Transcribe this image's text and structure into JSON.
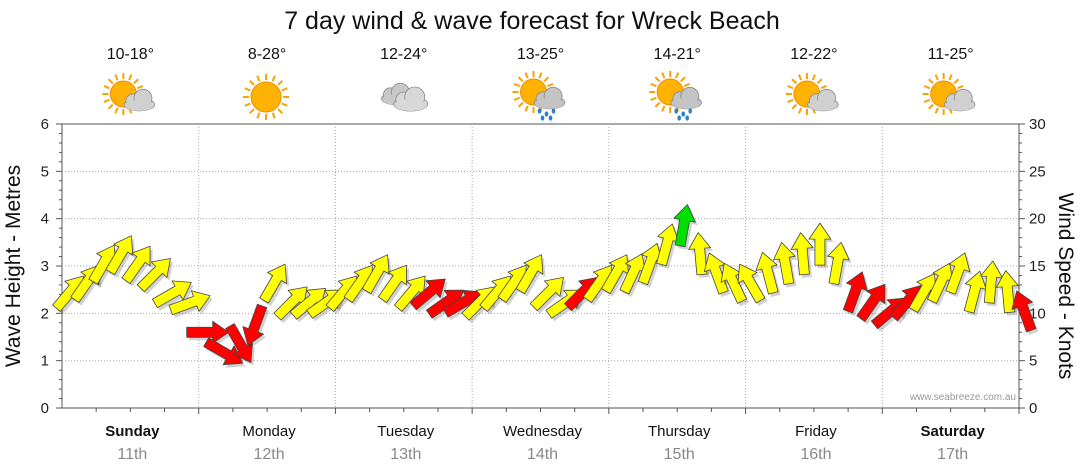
{
  "chart_data": {
    "type": "line",
    "title": "7 day wind & wave forecast for Wreck Beach",
    "y_left_label": "Wave Height - Metres",
    "y_right_label": "Wind Speed - Knots",
    "y_left_ticks": [
      "0",
      "1",
      "2",
      "3",
      "4",
      "5",
      "6"
    ],
    "y_right_ticks": [
      "0",
      "5",
      "10",
      "15",
      "20",
      "25",
      "30"
    ],
    "ylim_left": [
      0,
      6
    ],
    "ylim_right": [
      0,
      30
    ],
    "days": [
      {
        "name": "Sunday",
        "date": "11th",
        "bold": true,
        "temp": "10-18°",
        "weather": "partly-cloudy-icon"
      },
      {
        "name": "Monday",
        "date": "12th",
        "bold": false,
        "temp": "8-28°",
        "weather": "sunny-icon"
      },
      {
        "name": "Tuesday",
        "date": "13th",
        "bold": false,
        "temp": "12-24°",
        "weather": "cloudy-icon"
      },
      {
        "name": "Wednesday",
        "date": "14th",
        "bold": false,
        "temp": "13-25°",
        "weather": "showers-icon"
      },
      {
        "name": "Thursday",
        "date": "15th",
        "bold": false,
        "temp": "14-21°",
        "weather": "showers-icon"
      },
      {
        "name": "Friday",
        "date": "16th",
        "bold": false,
        "temp": "12-22°",
        "weather": "partly-cloudy-icon"
      },
      {
        "name": "Saturday",
        "date": "17th",
        "bold": true,
        "temp": "11-25°",
        "weather": "partly-cloudy-icon"
      }
    ],
    "legend": {
      "light_wind": "#ffff00",
      "strong_wind": "#ff0000",
      "favourable_wind": "#00e000"
    },
    "series": [
      {
        "name": "Wind speed (knots)",
        "x_hours": [
          0,
          3,
          6,
          9,
          12,
          15,
          18,
          21,
          24,
          27,
          30,
          33,
          36,
          39,
          42,
          45,
          48,
          51,
          54,
          57,
          60,
          63,
          66,
          69,
          72,
          75,
          78,
          81,
          84,
          87,
          90,
          93,
          96,
          99,
          102,
          105,
          108,
          111,
          114,
          117,
          120,
          123,
          126,
          129,
          132,
          135,
          138,
          141,
          144,
          147,
          150,
          153,
          156,
          159,
          162,
          165,
          168
        ],
        "values": [
          12,
          13,
          15,
          16,
          15,
          14,
          12,
          11,
          8,
          6,
          7,
          9,
          13,
          11,
          11,
          11,
          12,
          13,
          14,
          13,
          12,
          12,
          11,
          11,
          11,
          12,
          13,
          14,
          12,
          11,
          12,
          13,
          14,
          14,
          15,
          17,
          19,
          16,
          14,
          13,
          13,
          14,
          15,
          16,
          17,
          15,
          12,
          11,
          10,
          11,
          12,
          13,
          14,
          12,
          13,
          12,
          10
        ],
        "direction_deg": [
          220,
          215,
          210,
          210,
          215,
          225,
          240,
          250,
          270,
          300,
          330,
          20,
          210,
          225,
          230,
          235,
          220,
          215,
          210,
          215,
          220,
          230,
          235,
          240,
          225,
          220,
          215,
          210,
          225,
          235,
          225,
          215,
          210,
          205,
          200,
          195,
          190,
          175,
          160,
          155,
          150,
          165,
          170,
          175,
          180,
          190,
          200,
          215,
          230,
          220,
          210,
          205,
          200,
          195,
          185,
          175,
          160
        ],
        "colors": [
          "y",
          "y",
          "y",
          "y",
          "y",
          "y",
          "y",
          "y",
          "r",
          "r",
          "r",
          "r",
          "y",
          "y",
          "y",
          "y",
          "y",
          "y",
          "y",
          "y",
          "y",
          "r",
          "r",
          "r",
          "y",
          "y",
          "y",
          "y",
          "y",
          "y",
          "r",
          "y",
          "y",
          "y",
          "y",
          "y",
          "g",
          "y",
          "y",
          "y",
          "y",
          "y",
          "y",
          "y",
          "y",
          "y",
          "r",
          "r",
          "r",
          "r",
          "y",
          "y",
          "y",
          "y",
          "y",
          "y",
          "r"
        ]
      }
    ],
    "credit": "www.seabreeze.com.au"
  }
}
